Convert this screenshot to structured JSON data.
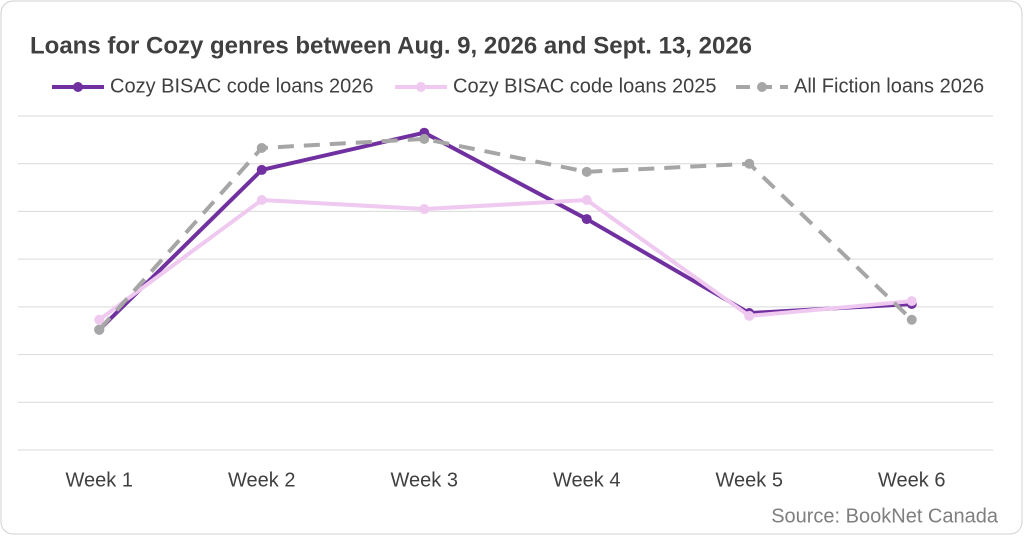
{
  "chart_data": {
    "type": "line",
    "title": "Loans for Cozy genres between Aug. 9, 2026 and Sept. 13, 2026",
    "source": "Source: BookNet Canada",
    "categories": [
      "Week 1",
      "Week 2",
      "Week 3",
      "Week 4",
      "Week 5",
      "Week 6"
    ],
    "series": [
      {
        "name": "Cozy BISAC code loans 2026",
        "color": "#7030a0",
        "dashed": false,
        "values": [
          2.52,
          5.87,
          6.65,
          4.84,
          2.87,
          3.06
        ]
      },
      {
        "name": "Cozy BISAC code loans 2025",
        "color": "#efc9f0",
        "dashed": false,
        "values": [
          2.73,
          5.24,
          5.05,
          5.24,
          2.81,
          3.12
        ]
      },
      {
        "name": "All Fiction loans 2026",
        "color": "#a6a6a6",
        "dashed": true,
        "values": [
          2.52,
          6.33,
          6.52,
          5.83,
          6.0,
          2.73
        ]
      }
    ],
    "ylim": [
      0,
      7
    ],
    "yticks": [
      0,
      1,
      2,
      3,
      4,
      5,
      6,
      7
    ],
    "grid": true
  }
}
